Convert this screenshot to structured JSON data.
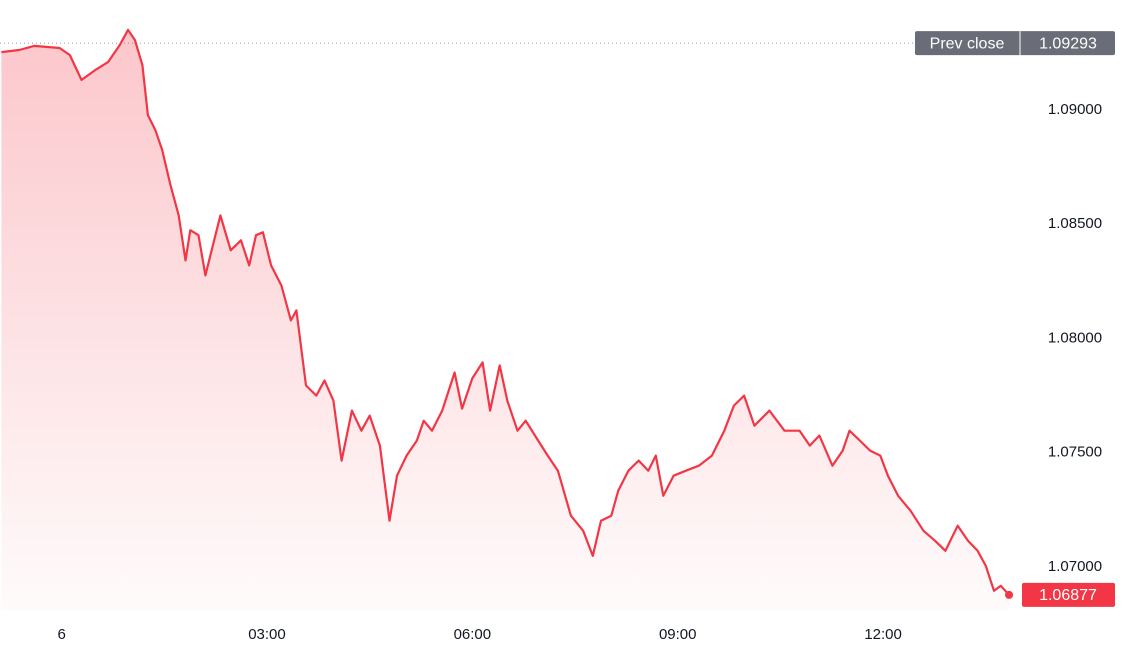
{
  "chart_data": {
    "type": "area",
    "x": [
      -0.88,
      -0.62,
      -0.4,
      -0.03,
      0.12,
      0.29,
      0.49,
      0.68,
      0.85,
      0.97,
      1.07,
      1.18,
      1.26,
      1.37,
      1.47,
      1.59,
      1.71,
      1.81,
      1.88,
      2.0,
      2.1,
      2.21,
      2.32,
      2.47,
      2.62,
      2.74,
      2.84,
      2.94,
      3.06,
      3.21,
      3.35,
      3.43,
      3.57,
      3.72,
      3.84,
      3.97,
      4.09,
      4.24,
      4.38,
      4.5,
      4.65,
      4.79,
      4.9,
      5.04,
      5.19,
      5.29,
      5.41,
      5.56,
      5.74,
      5.85,
      6.0,
      6.15,
      6.26,
      6.4,
      6.51,
      6.66,
      6.78,
      6.96,
      7.1,
      7.25,
      7.44,
      7.62,
      7.76,
      7.88,
      8.03,
      8.13,
      8.28,
      8.43,
      8.57,
      8.68,
      8.79,
      8.94,
      9.12,
      9.31,
      9.5,
      9.68,
      9.82,
      9.97,
      10.12,
      10.34,
      10.56,
      10.78,
      10.93,
      11.07,
      11.26,
      11.41,
      11.51,
      11.66,
      11.81,
      11.96,
      12.07,
      12.22,
      12.4,
      12.59,
      12.76,
      12.91,
      13.09,
      13.24,
      13.38,
      13.5,
      13.62,
      13.72,
      13.84
    ],
    "series": [
      {
        "color": "#f23645",
        "values": [
          1.09254,
          1.09263,
          1.09281,
          1.09272,
          1.09241,
          1.09132,
          1.09175,
          1.09211,
          1.09285,
          1.09351,
          1.09307,
          1.09197,
          1.08978,
          1.08912,
          1.08825,
          1.08671,
          1.08539,
          1.08342,
          1.08474,
          1.08452,
          1.08276,
          1.08408,
          1.08539,
          1.08386,
          1.0843,
          1.0832,
          1.08452,
          1.08465,
          1.0832,
          1.08232,
          1.08079,
          1.08123,
          1.07794,
          1.0775,
          1.07816,
          1.07728,
          1.07465,
          1.07684,
          1.07596,
          1.07662,
          1.07531,
          1.07202,
          1.07399,
          1.07487,
          1.07553,
          1.0764,
          1.07596,
          1.07684,
          1.07851,
          1.07693,
          1.07825,
          1.07895,
          1.07684,
          1.07882,
          1.07728,
          1.07596,
          1.0764,
          1.07553,
          1.07487,
          1.07421,
          1.07224,
          1.07158,
          1.07048,
          1.07202,
          1.07224,
          1.07333,
          1.07421,
          1.07465,
          1.07421,
          1.07487,
          1.07311,
          1.07399,
          1.07421,
          1.07443,
          1.07487,
          1.07596,
          1.07706,
          1.0775,
          1.07618,
          1.07684,
          1.07596,
          1.07596,
          1.07531,
          1.07575,
          1.07443,
          1.07509,
          1.07596,
          1.07553,
          1.07509,
          1.07487,
          1.07399,
          1.07311,
          1.07246,
          1.07158,
          1.07114,
          1.0707,
          1.0718,
          1.07114,
          1.0707,
          1.07004,
          1.06895,
          1.06917,
          1.06877
        ]
      }
    ],
    "xlim": [
      -0.9,
      14.0
    ],
    "xticks": [
      {
        "value": 0,
        "label": "6"
      },
      {
        "value": 3,
        "label": "03:00"
      },
      {
        "value": 6,
        "label": "06:00"
      },
      {
        "value": 9,
        "label": "09:00"
      },
      {
        "value": 12,
        "label": "12:00"
      }
    ],
    "ylim": [
      1.06811,
      1.09482
    ],
    "yticks": [
      {
        "value": 1.07,
        "label": "1.07000"
      },
      {
        "value": 1.075,
        "label": "1.07500"
      },
      {
        "value": 1.08,
        "label": "1.08000"
      },
      {
        "value": 1.085,
        "label": "1.08500"
      },
      {
        "value": 1.09,
        "label": "1.09000"
      }
    ],
    "prev_close": {
      "label": "Prev close",
      "value": 1.09293
    },
    "last": {
      "value": 1.06877
    }
  }
}
